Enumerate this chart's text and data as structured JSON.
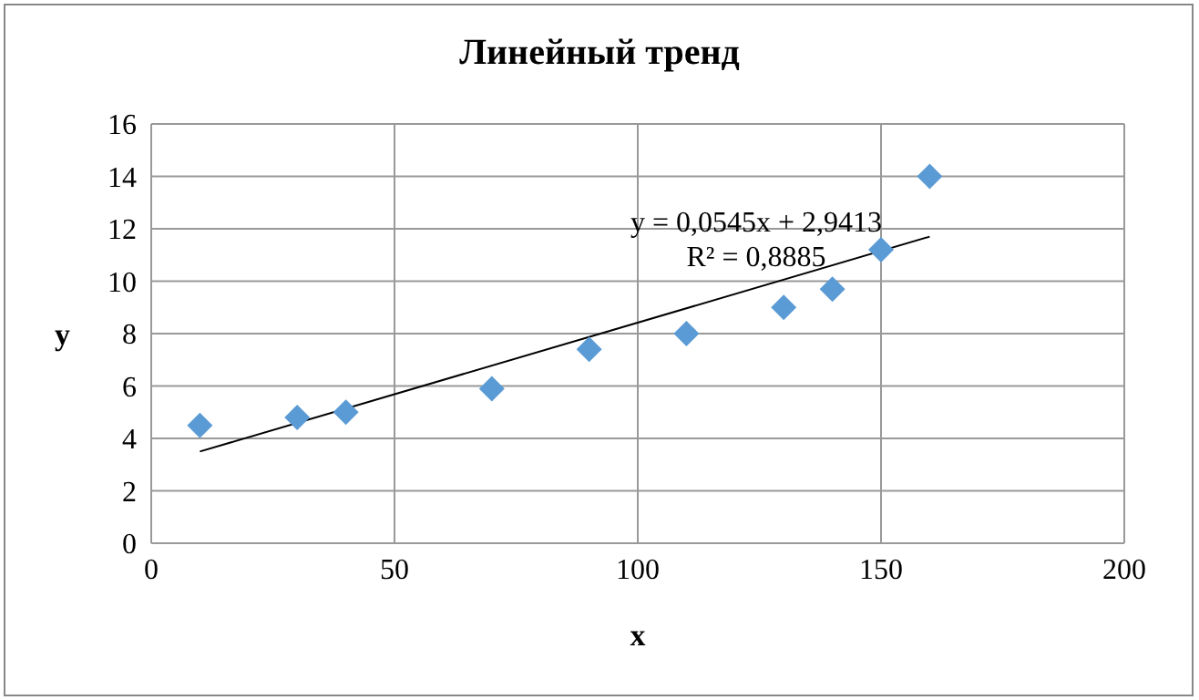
{
  "chart_data": {
    "type": "scatter",
    "title": "Линейный тренд",
    "xlabel": "x",
    "ylabel": "y",
    "xlim": [
      0,
      200
    ],
    "xticks": [
      0,
      50,
      100,
      150,
      200
    ],
    "ylim": [
      0,
      16
    ],
    "yticks": [
      0,
      2,
      4,
      6,
      8,
      10,
      12,
      14,
      16
    ],
    "grid": true,
    "series": [
      {
        "color": "#5b9bd5",
        "marker": "diamond",
        "x": [
          10,
          30,
          40,
          70,
          90,
          110,
          130,
          140,
          150,
          160
        ],
        "values": [
          4.5,
          4.8,
          5.0,
          5.9,
          7.4,
          8.0,
          9.0,
          9.7,
          11.2,
          14.0
        ]
      },
      {
        "type": "line",
        "color": "#000000",
        "marker": "none",
        "line_style": "solid",
        "x": [
          10,
          160
        ],
        "values": [
          3.5,
          11.7
        ]
      }
    ],
    "annotations": [
      "y = 0,0545x + 2,9413",
      "R² = 0,8885"
    ]
  }
}
